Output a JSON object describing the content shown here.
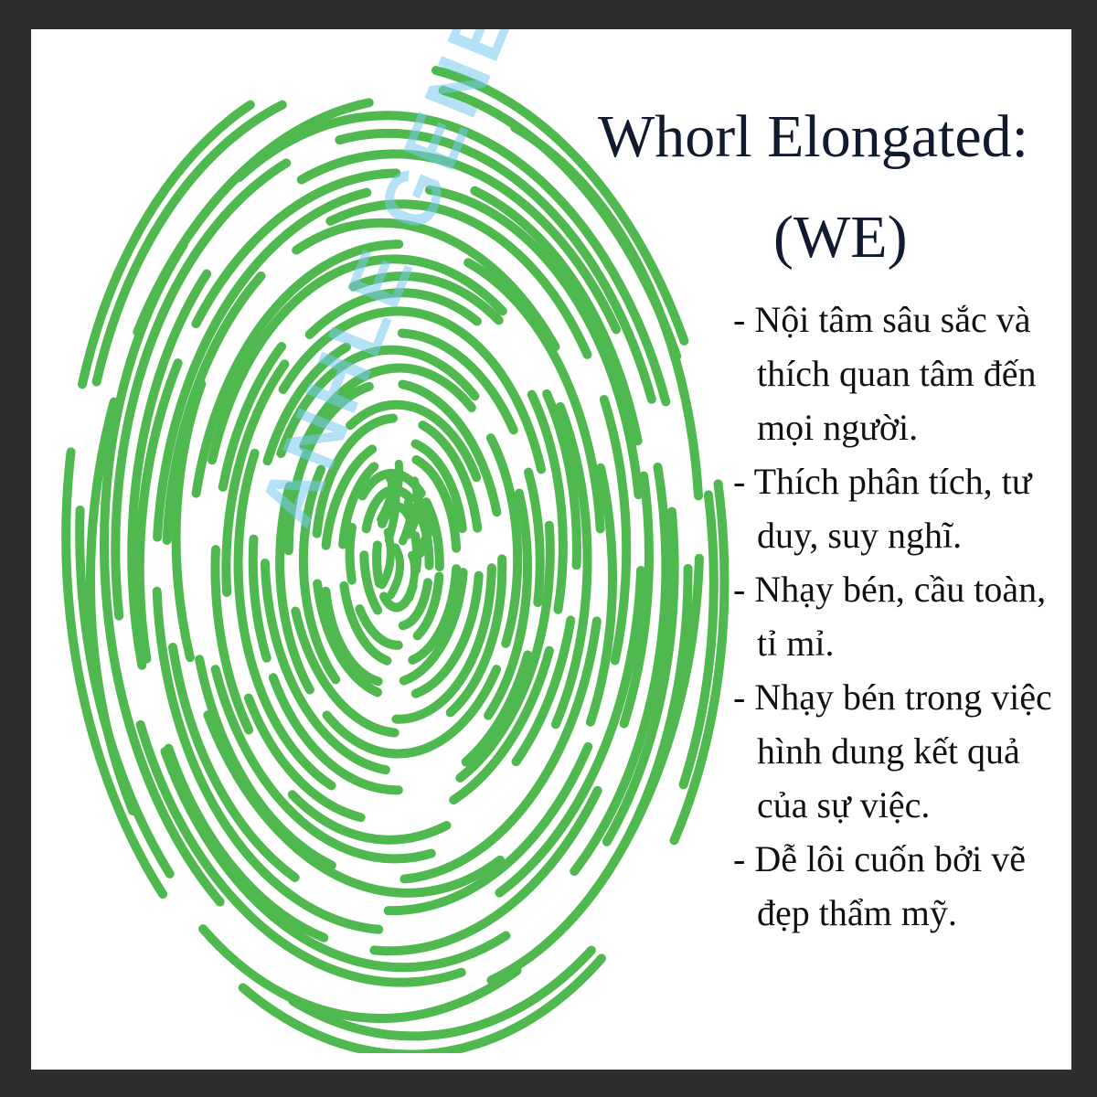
{
  "title": "Whorl Elongated:",
  "subtitle": "(WE)",
  "traits": [
    "- Nội tâm sâu sắc và thích quan tâm đến mọi người.",
    "- Thích phân tích, tư duy, suy nghĩ.",
    "- Nhạy bén, cầu toàn, tỉ mỉ.",
    "- Nhạy bén trong việc hình dung kết quả của sự việc.",
    "- Dễ lôi cuốn bởi vẽ đẹp thẩm mỹ."
  ],
  "watermark": "ANHLE GENES",
  "colors": {
    "fingerprint": "#4fb84f",
    "text": "#111a2e",
    "background": "#ffffff",
    "border": "#2e2e2e",
    "watermark": "#78c8f0"
  },
  "icon": "fingerprint-icon"
}
